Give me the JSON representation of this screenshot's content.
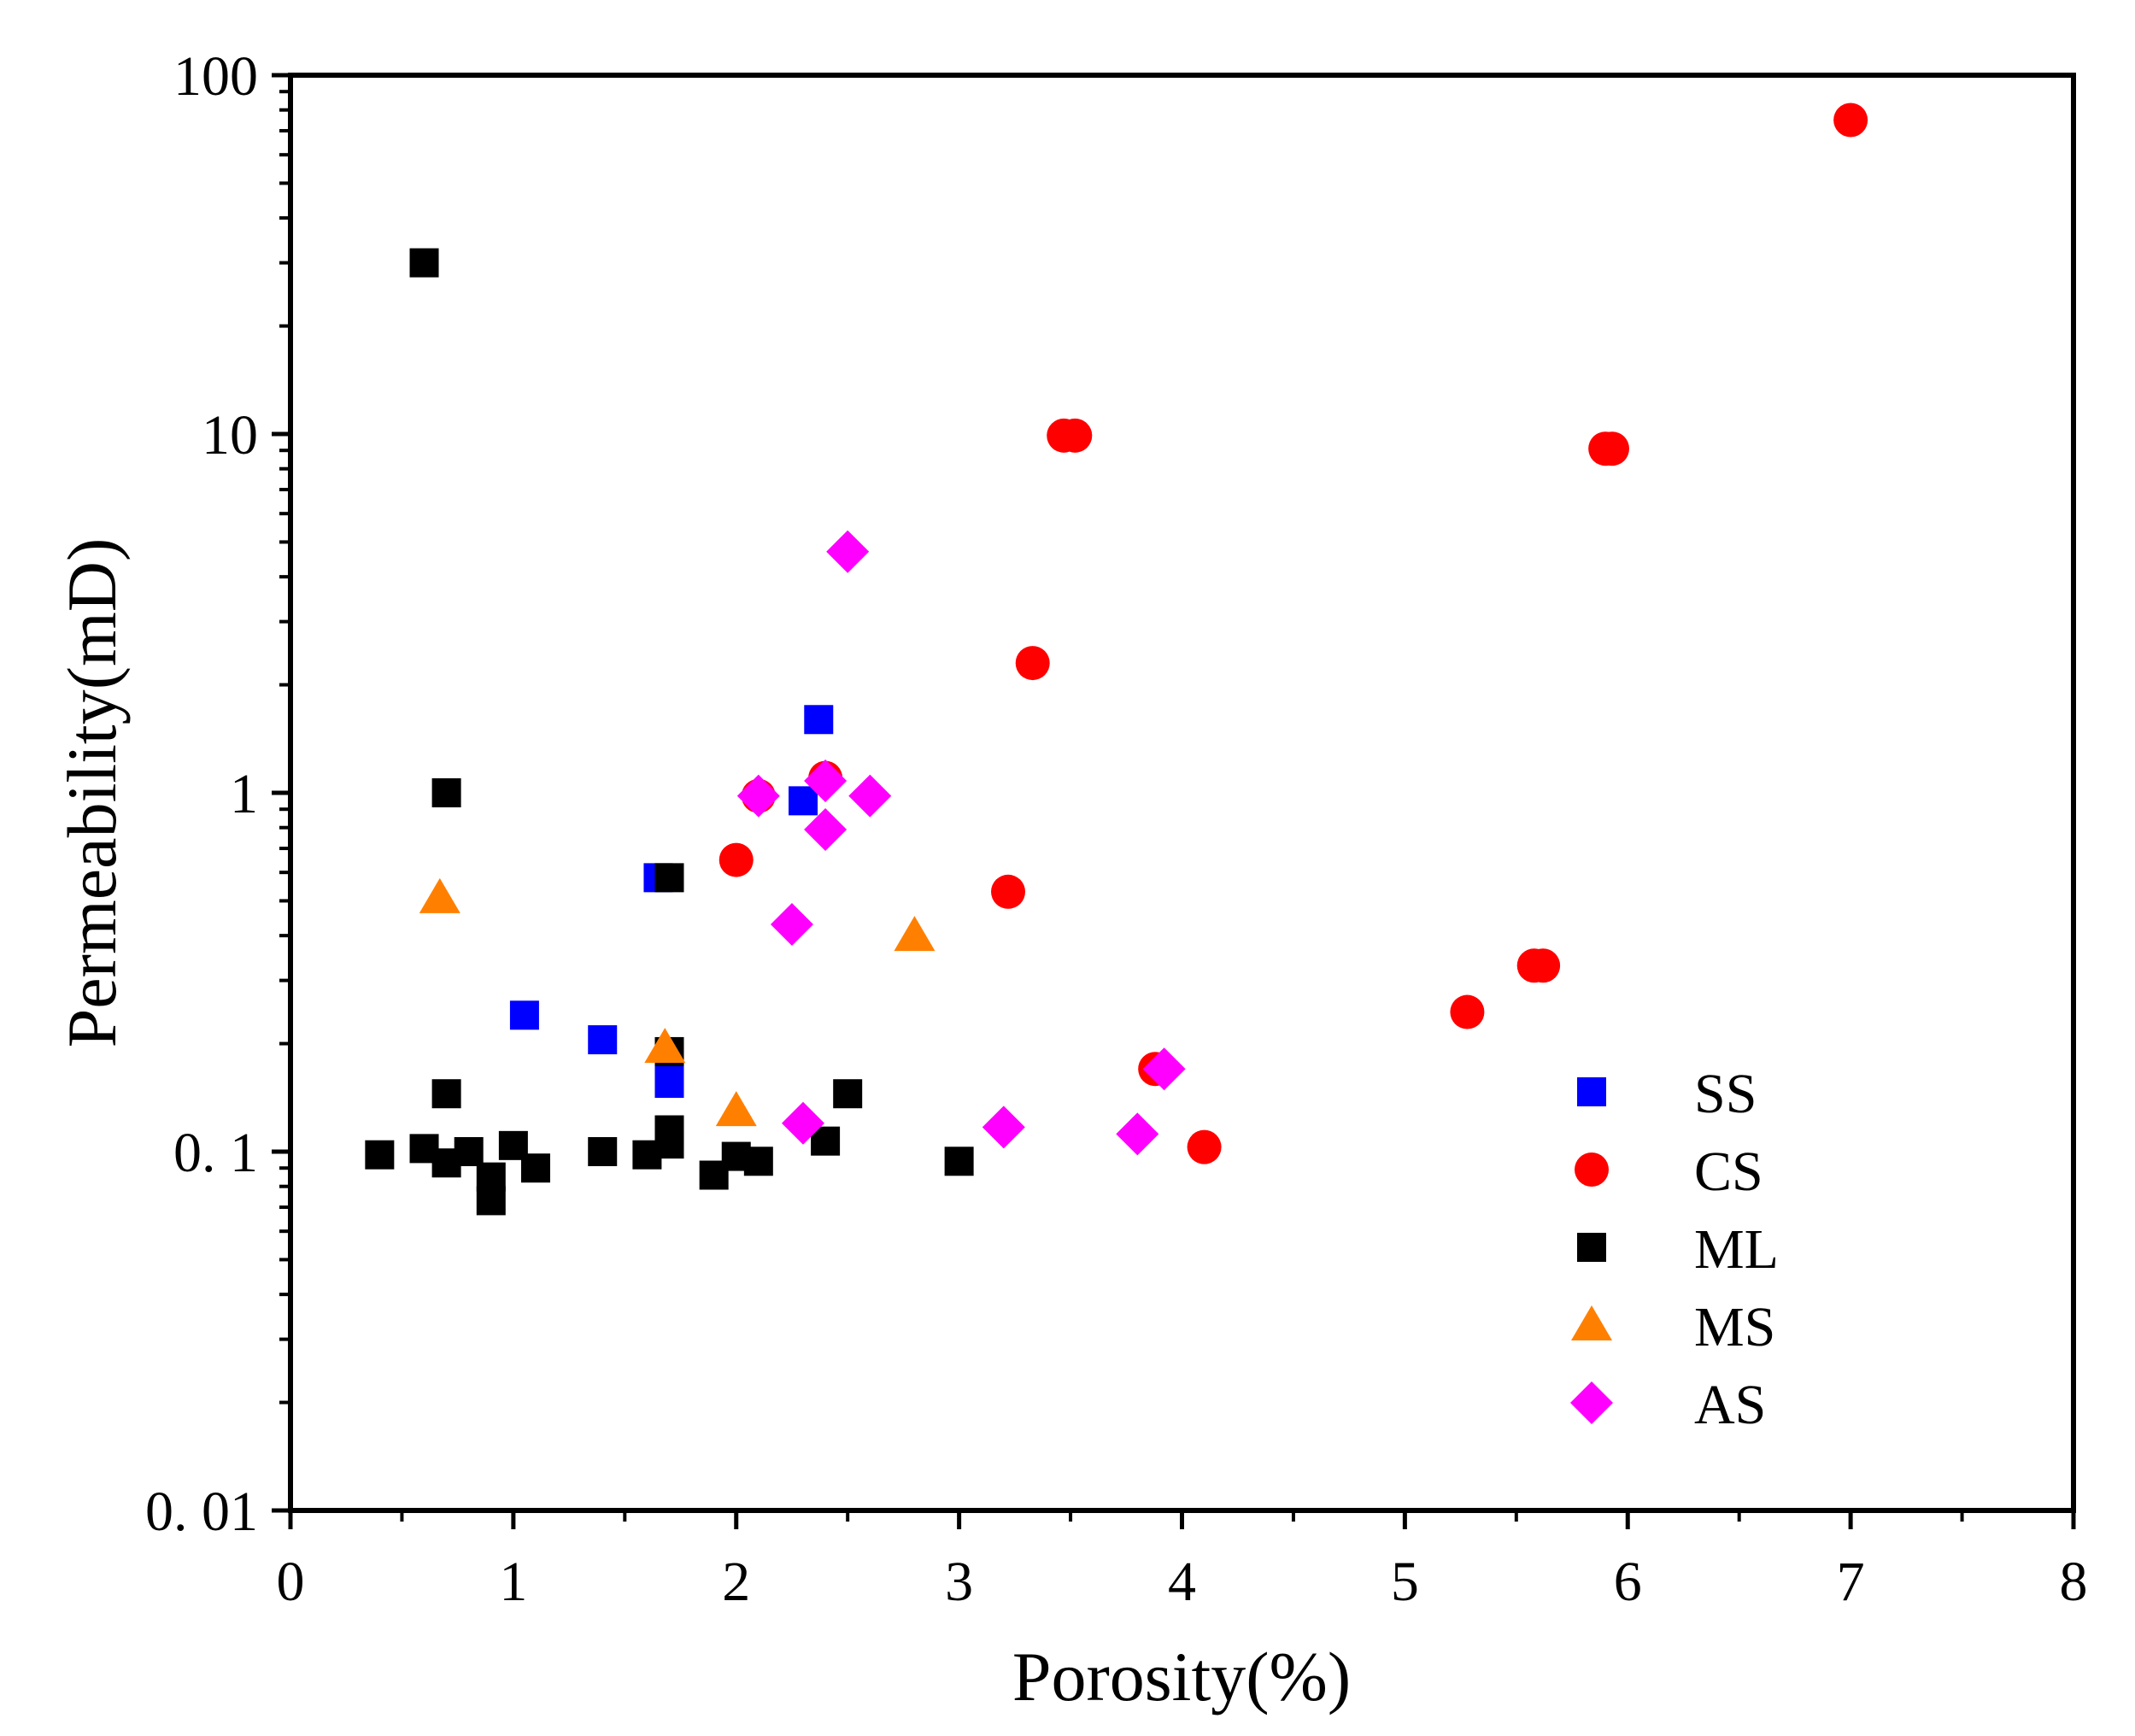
{
  "chart_data": {
    "type": "scatter",
    "title": "",
    "xlabel": "Porosity(%)",
    "ylabel": "Permeability(mD)",
    "xlim": [
      0,
      8
    ],
    "ylim": [
      0.01,
      100
    ],
    "yscale": "log",
    "grid": false,
    "legend_position": "right-center",
    "x_ticks": [
      0,
      1,
      2,
      3,
      4,
      5,
      6,
      7,
      8
    ],
    "x_tick_labels": [
      "0",
      "1",
      "2",
      "3",
      "4",
      "5",
      "6",
      "7",
      "8"
    ],
    "y_ticks": [
      0.01,
      0.1,
      1,
      10,
      100
    ],
    "y_tick_labels": [
      "0. 01",
      "0. 1",
      "1",
      "10",
      "100"
    ],
    "series": [
      {
        "name": "SS",
        "marker": "square",
        "color": "#0000ff",
        "points": [
          [
            1.05,
            0.24
          ],
          [
            1.4,
            0.205
          ],
          [
            1.7,
            0.155
          ],
          [
            1.7,
            0.18
          ],
          [
            1.65,
            0.58
          ],
          [
            2.3,
            0.95
          ],
          [
            2.37,
            1.6
          ]
        ]
      },
      {
        "name": "CS",
        "marker": "circle",
        "color": "#ff0000",
        "points": [
          [
            2.0,
            0.65
          ],
          [
            2.1,
            0.98
          ],
          [
            2.4,
            1.1
          ],
          [
            3.22,
            0.53
          ],
          [
            3.33,
            2.3
          ],
          [
            3.47,
            9.9
          ],
          [
            3.52,
            9.9
          ],
          [
            3.88,
            0.17
          ],
          [
            4.1,
            0.103
          ],
          [
            5.28,
            0.245
          ],
          [
            5.58,
            0.33
          ],
          [
            5.62,
            0.33
          ],
          [
            5.9,
            9.1
          ],
          [
            5.93,
            9.1
          ],
          [
            7.0,
            75
          ]
        ]
      },
      {
        "name": "ML",
        "marker": "square",
        "color": "#000000",
        "points": [
          [
            0.4,
            0.098
          ],
          [
            0.6,
            0.102
          ],
          [
            0.6,
            30
          ],
          [
            0.7,
            0.093
          ],
          [
            0.7,
            0.145
          ],
          [
            0.7,
            1.0
          ],
          [
            0.8,
            0.1
          ],
          [
            0.9,
            0.085
          ],
          [
            0.9,
            0.073
          ],
          [
            1.0,
            0.104
          ],
          [
            1.1,
            0.09
          ],
          [
            1.4,
            0.1
          ],
          [
            1.6,
            0.098
          ],
          [
            1.7,
            0.105
          ],
          [
            1.7,
            0.115
          ],
          [
            1.7,
            0.19
          ],
          [
            1.7,
            0.58
          ],
          [
            1.9,
            0.086
          ],
          [
            2.0,
            0.097
          ],
          [
            2.1,
            0.094
          ],
          [
            2.4,
            0.107
          ],
          [
            2.5,
            0.145
          ],
          [
            3.0,
            0.094
          ]
        ]
      },
      {
        "name": "MS",
        "marker": "triangle",
        "color": "#ff8000",
        "points": [
          [
            0.67,
            0.51
          ],
          [
            1.68,
            0.195
          ],
          [
            2.0,
            0.13
          ],
          [
            2.8,
            0.4
          ]
        ]
      },
      {
        "name": "AS",
        "marker": "diamond",
        "color": "#ff00ff",
        "points": [
          [
            2.1,
            0.98
          ],
          [
            2.25,
            0.43
          ],
          [
            2.3,
            0.12
          ],
          [
            2.4,
            1.08
          ],
          [
            2.4,
            0.79
          ],
          [
            2.5,
            4.7
          ],
          [
            2.6,
            0.98
          ],
          [
            3.2,
            0.117
          ],
          [
            3.8,
            0.112
          ],
          [
            3.92,
            0.17
          ]
        ]
      }
    ]
  }
}
